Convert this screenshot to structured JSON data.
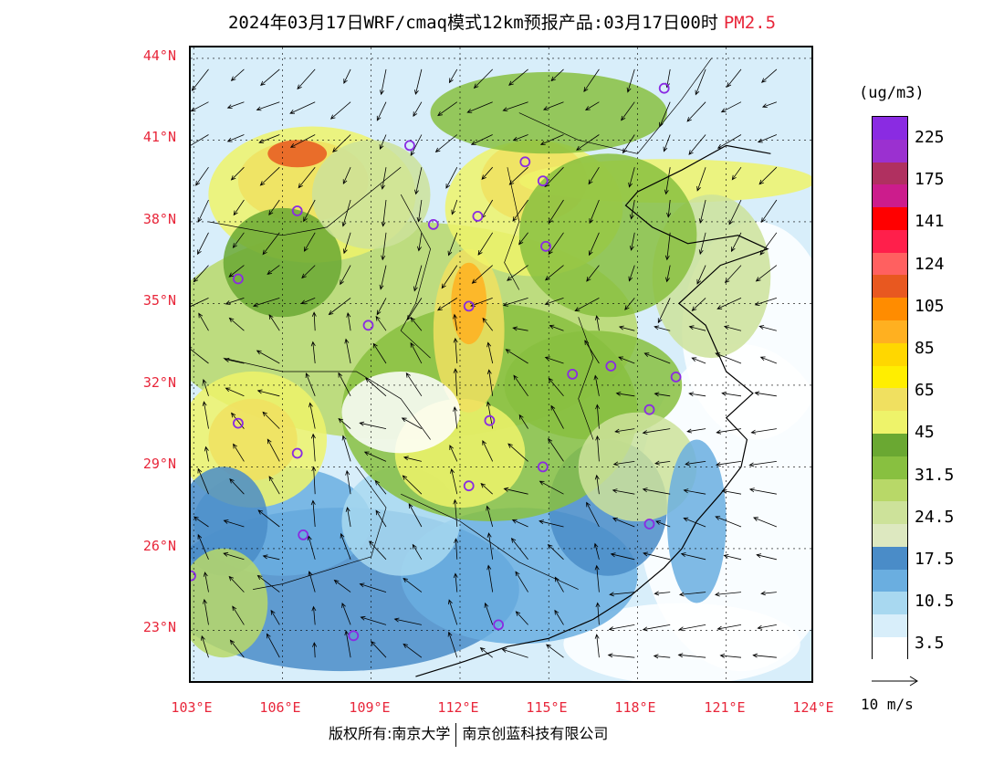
{
  "title": {
    "main": "2024年03月17日WRF/cmaq模式12km预报产品:03月17日00时",
    "pollutant": "PM2.5"
  },
  "axes": {
    "lat_labels": [
      "44°N",
      "41°N",
      "38°N",
      "35°N",
      "32°N",
      "29°N",
      "26°N",
      "23°N"
    ],
    "lon_labels": [
      "103°E",
      "106°E",
      "109°E",
      "112°E",
      "115°E",
      "118°E",
      "121°E",
      "124°E"
    ],
    "lat_values": [
      44,
      41,
      38,
      35,
      32,
      29,
      26,
      23
    ],
    "lon_values": [
      103,
      106,
      109,
      112,
      115,
      118,
      121,
      124
    ],
    "lon_range": [
      102.9,
      124.0
    ],
    "lat_range": [
      21.0,
      44.4
    ]
  },
  "legend": {
    "unit": "(ug/m3)",
    "labels": [
      "225",
      "175",
      "141",
      "124",
      "105",
      "85",
      "65",
      "45",
      "31.5",
      "24.5",
      "17.5",
      "10.5",
      "3.5"
    ],
    "colors": [
      "#8a2be2",
      "#9b30d0",
      "#b03060",
      "#cc1c8c",
      "#ff0000",
      "#ff1f4b",
      "#ff6060",
      "#e85820",
      "#ff8c00",
      "#ffb020",
      "#ffd700",
      "#ffee00",
      "#f0e060",
      "#eef36a",
      "#6aa832",
      "#88c040",
      "#b8d868",
      "#cde29a",
      "#dde8c0",
      "#4a8cc8",
      "#6aaee0",
      "#a8d8f0",
      "#d8eefa",
      "#ffffff"
    ]
  },
  "wind_reference": {
    "label": "10 m/s"
  },
  "cities": [
    {
      "name": "",
      "lon": 118.9,
      "lat": 42.9
    },
    {
      "name": "",
      "lon": 110.3,
      "lat": 40.8
    },
    {
      "name": "",
      "lon": 114.2,
      "lat": 40.2
    },
    {
      "name": "",
      "lon": 114.8,
      "lat": 39.5
    },
    {
      "name": "",
      "lon": 106.5,
      "lat": 38.4
    },
    {
      "name": "",
      "lon": 111.1,
      "lat": 37.9
    },
    {
      "name": "",
      "lon": 112.6,
      "lat": 38.2
    },
    {
      "name": "",
      "lon": 114.9,
      "lat": 37.1
    },
    {
      "name": "",
      "lon": 104.5,
      "lat": 35.9
    },
    {
      "name": "",
      "lon": 112.3,
      "lat": 34.9
    },
    {
      "name": "",
      "lon": 108.9,
      "lat": 34.2
    },
    {
      "name": "",
      "lon": 115.8,
      "lat": 32.4
    },
    {
      "name": "",
      "lon": 117.1,
      "lat": 32.7
    },
    {
      "name": "",
      "lon": 119.3,
      "lat": 32.3
    },
    {
      "name": "",
      "lon": 118.4,
      "lat": 31.1
    },
    {
      "name": "",
      "lon": 113.0,
      "lat": 30.7
    },
    {
      "name": "",
      "lon": 104.5,
      "lat": 30.6
    },
    {
      "name": "",
      "lon": 106.5,
      "lat": 29.5
    },
    {
      "name": "",
      "lon": 112.3,
      "lat": 28.3
    },
    {
      "name": "",
      "lon": 114.8,
      "lat": 29.0
    },
    {
      "name": "",
      "lon": 106.7,
      "lat": 26.5
    },
    {
      "name": "",
      "lon": 118.4,
      "lat": 26.9
    },
    {
      "name": "",
      "lon": 102.9,
      "lat": 25.0
    },
    {
      "name": "",
      "lon": 108.4,
      "lat": 22.8
    },
    {
      "name": "",
      "lon": 113.3,
      "lat": 23.2
    }
  ],
  "copyright": {
    "left": "版权所有:南京大学",
    "right": "南京创蓝科技有限公司"
  }
}
